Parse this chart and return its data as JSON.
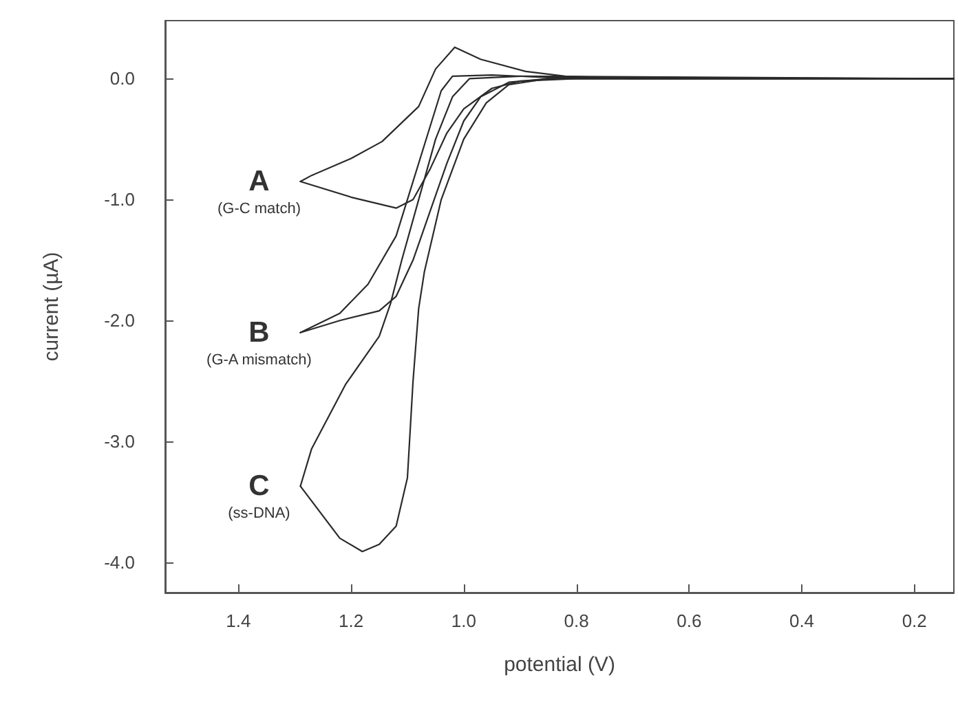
{
  "chart_data": {
    "type": "line",
    "xlabel": "potential (V)",
    "ylabel": "current (µA)",
    "xlim": [
      1.53,
      0.13
    ],
    "xticks": [
      1.4,
      1.2,
      {
        "value": 1,
        "label": "1.0"
      },
      0.8,
      0.6,
      0.4,
      0.2
    ],
    "ylim": [
      -4.25,
      0.48
    ],
    "yticks": [
      {
        "value": -4,
        "label": "-4.0"
      },
      {
        "value": -3,
        "label": "-3.0"
      },
      {
        "value": -2,
        "label": "-2.0"
      },
      {
        "value": -1,
        "label": "-1.0"
      },
      {
        "value": 0,
        "label": "0.0"
      }
    ],
    "marker": "none",
    "line_style": "solid",
    "series": [
      {
        "color": "#2a2a2a",
        "x": [
          0.13,
          0.8,
          0.9,
          0.95,
          1.0,
          1.03,
          1.06,
          1.09,
          1.12,
          1.2,
          1.29
        ],
        "values": [
          0,
          0,
          -0.02,
          -0.08,
          -0.25,
          -0.45,
          -0.75,
          -1.0,
          -1.07,
          -0.98,
          -0.85
        ]
      },
      {
        "color": "#2a2a2a",
        "x": [
          1.29,
          1.27,
          1.2,
          1.145,
          1.08,
          1.05,
          1.016,
          0.97,
          0.89,
          0.82,
          0.7,
          0.13
        ],
        "values": [
          -0.85,
          -0.8,
          -0.66,
          -0.52,
          -0.23,
          0.08,
          0.26,
          0.16,
          0.06,
          0.02,
          0,
          0
        ]
      },
      {
        "color": "#2a2a2a",
        "x": [
          0.13,
          0.85,
          0.92,
          0.97,
          1.0,
          1.03,
          1.06,
          1.09,
          1.12,
          1.15,
          1.22,
          1.29
        ],
        "values": [
          0,
          0,
          -0.03,
          -0.15,
          -0.35,
          -0.7,
          -1.1,
          -1.5,
          -1.8,
          -1.92,
          -2.0,
          -2.1
        ]
      },
      {
        "color": "#2a2a2a",
        "x": [
          1.29,
          1.22,
          1.17,
          1.12,
          1.09,
          1.06,
          1.04,
          1.02,
          0.95,
          0.85,
          0.13
        ],
        "values": [
          -2.1,
          -1.94,
          -1.7,
          -1.3,
          -0.85,
          -0.4,
          -0.1,
          0.02,
          0.03,
          0.01,
          0
        ]
      },
      {
        "color": "#2a2a2a",
        "x": [
          0.13,
          0.85,
          0.92,
          0.96,
          1.0,
          1.04,
          1.07,
          1.08,
          1.09,
          1.1,
          1.12,
          1.15,
          1.18,
          1.22,
          1.29
        ],
        "values": [
          0,
          0,
          -0.05,
          -0.2,
          -0.5,
          -1.0,
          -1.6,
          -1.9,
          -2.5,
          -3.3,
          -3.7,
          -3.85,
          -3.91,
          -3.8,
          -3.37
        ]
      },
      {
        "color": "#2a2a2a",
        "x": [
          1.29,
          1.27,
          1.21,
          1.15,
          1.13,
          1.11,
          1.08,
          1.05,
          1.02,
          0.99,
          0.9,
          0.13
        ],
        "values": [
          -3.37,
          -3.06,
          -2.53,
          -2.13,
          -1.86,
          -1.5,
          -1.0,
          -0.5,
          -0.15,
          0,
          0.02,
          0
        ]
      }
    ],
    "annotations": [
      "A\n(G-C match)",
      "B\n(G-A mismatch)",
      "C\n(ss-DNA)"
    ]
  }
}
